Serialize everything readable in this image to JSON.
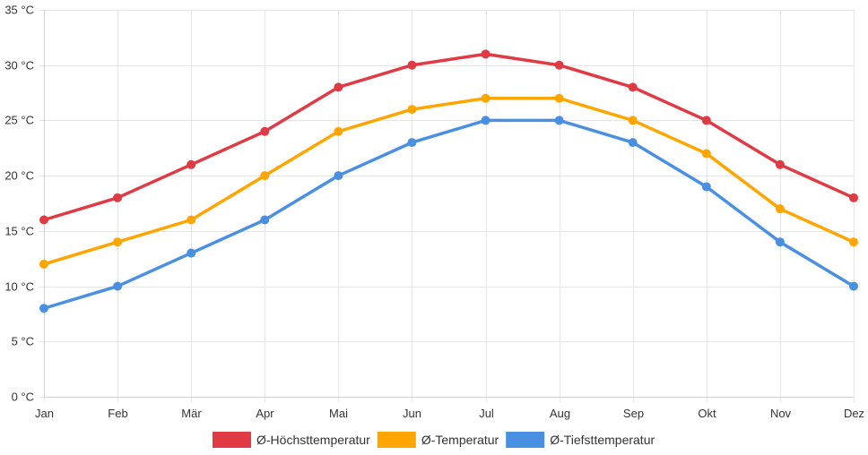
{
  "chart_data": {
    "type": "line",
    "title": "",
    "xlabel": "",
    "ylabel": "",
    "categories": [
      "Jan",
      "Feb",
      "Mär",
      "Apr",
      "Mai",
      "Jun",
      "Jul",
      "Aug",
      "Sep",
      "Okt",
      "Nov",
      "Dez"
    ],
    "y_unit": "°C",
    "ylim": [
      0,
      35
    ],
    "y_ticks": [
      0,
      5,
      10,
      15,
      20,
      25,
      30,
      35
    ],
    "grid": true,
    "legend_position": "bottom",
    "series": [
      {
        "name": "Ø-Höchsttemperatur",
        "color": "#e03a45",
        "values": [
          16,
          18,
          21,
          24,
          28,
          30,
          31,
          30,
          28,
          25,
          21,
          18
        ]
      },
      {
        "name": "Ø-Temperatur",
        "color": "#ffa500",
        "values": [
          12,
          14,
          16,
          20,
          24,
          26,
          27,
          27,
          25,
          22,
          17,
          14
        ]
      },
      {
        "name": "Ø-Tiefsttemperatur",
        "color": "#4a90e2",
        "values": [
          8,
          10,
          13,
          16,
          20,
          23,
          25,
          25,
          23,
          19,
          14,
          10
        ]
      }
    ]
  }
}
